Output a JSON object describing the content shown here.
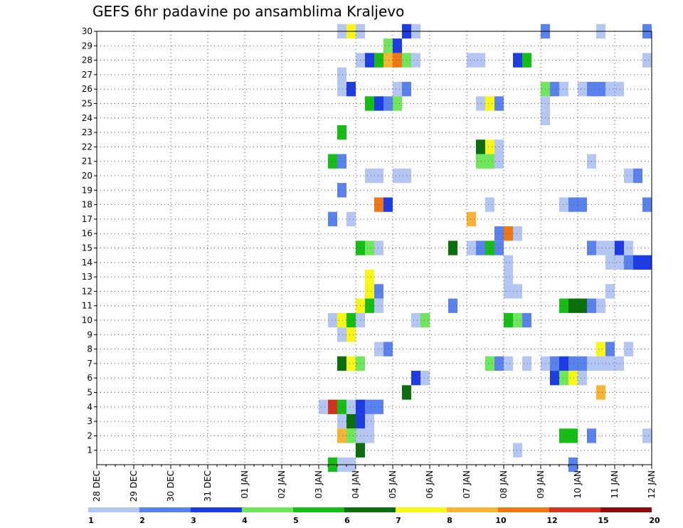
{
  "title": "GEFS 6hr padavine po ansamblima Kraljevo",
  "chart_data": {
    "type": "heatmap",
    "title": "GEFS 6hr padavine po ansamblima Kraljevo",
    "x_labels": [
      "28 DEC",
      "29 DEC",
      "30 DEC",
      "31 DEC",
      "01 JAN",
      "02 JAN",
      "03 JAN",
      "04 JAN",
      "05 JAN",
      "06 JAN",
      "07 JAN",
      "08 JAN",
      "09 JAN",
      "10 JAN",
      "11 JAN",
      "12 JAN"
    ],
    "x_unit": "6h step index (0 = 28 DEC 00Z, 4 steps per day)",
    "xlim": [
      0,
      60
    ],
    "y_ticks": [
      1,
      2,
      3,
      4,
      5,
      6,
      7,
      8,
      9,
      10,
      11,
      12,
      13,
      14,
      15,
      16,
      17,
      18,
      19,
      20,
      21,
      22,
      23,
      24,
      25,
      26,
      27,
      28,
      29,
      30
    ],
    "ylim": [
      0,
      30
    ],
    "grid": true,
    "colorbar": {
      "labels": [
        "1",
        "2",
        "3",
        "4",
        "5",
        "6",
        "7",
        "8",
        "10",
        "12",
        "15",
        "20"
      ],
      "colors": [
        "#b4c6f4",
        "#5a82ee",
        "#1e3ce6",
        "#6ee85a",
        "#14be14",
        "#0a6e0a",
        "#f8f814",
        "#f8b432",
        "#f07814",
        "#d2321e",
        "#8c0a0a"
      ]
    },
    "cells": [
      {
        "y": 30,
        "x": 26.5,
        "c": 1
      },
      {
        "y": 30,
        "x": 27.5,
        "c": 7
      },
      {
        "y": 30,
        "x": 28.5,
        "c": 1
      },
      {
        "y": 30,
        "x": 33.5,
        "c": 3
      },
      {
        "y": 30,
        "x": 34.5,
        "c": 1
      },
      {
        "y": 30,
        "x": 48.5,
        "c": 2
      },
      {
        "y": 30,
        "x": 54.5,
        "c": 1
      },
      {
        "y": 30,
        "x": 59.5,
        "c": 2
      },
      {
        "y": 29,
        "x": 31.5,
        "c": 4
      },
      {
        "y": 29,
        "x": 32.5,
        "c": 3
      },
      {
        "y": 28,
        "x": 28.5,
        "c": 1
      },
      {
        "y": 28,
        "x": 29.5,
        "c": 3
      },
      {
        "y": 28,
        "x": 30.5,
        "c": 5
      },
      {
        "y": 28,
        "x": 31.5,
        "c": 8
      },
      {
        "y": 28,
        "x": 32.5,
        "c": 9
      },
      {
        "y": 28,
        "x": 33.5,
        "c": 4
      },
      {
        "y": 28,
        "x": 34.5,
        "c": 1
      },
      {
        "y": 28,
        "x": 40.5,
        "c": 1
      },
      {
        "y": 28,
        "x": 41.5,
        "c": 1
      },
      {
        "y": 28,
        "x": 45.5,
        "c": 3
      },
      {
        "y": 28,
        "x": 46.5,
        "c": 5
      },
      {
        "y": 28,
        "x": 59.5,
        "c": 1
      },
      {
        "y": 27,
        "x": 26.5,
        "c": 1
      },
      {
        "y": 26,
        "x": 26.5,
        "c": 1
      },
      {
        "y": 26,
        "x": 27.5,
        "c": 3
      },
      {
        "y": 26,
        "x": 32.5,
        "c": 1
      },
      {
        "y": 26,
        "x": 33.5,
        "c": 2
      },
      {
        "y": 26,
        "x": 48.5,
        "c": 4
      },
      {
        "y": 26,
        "x": 49.5,
        "c": 2
      },
      {
        "y": 26,
        "x": 50.5,
        "c": 1
      },
      {
        "y": 26,
        "x": 52.5,
        "c": 1
      },
      {
        "y": 26,
        "x": 53.5,
        "c": 2
      },
      {
        "y": 26,
        "x": 54.5,
        "c": 2
      },
      {
        "y": 26,
        "x": 55.5,
        "c": 1
      },
      {
        "y": 26,
        "x": 56.5,
        "c": 1
      },
      {
        "y": 25,
        "x": 29.5,
        "c": 5
      },
      {
        "y": 25,
        "x": 30.5,
        "c": 3
      },
      {
        "y": 25,
        "x": 31.5,
        "c": 2
      },
      {
        "y": 25,
        "x": 32.5,
        "c": 4
      },
      {
        "y": 25,
        "x": 41.5,
        "c": 1
      },
      {
        "y": 25,
        "x": 42.5,
        "c": 7
      },
      {
        "y": 25,
        "x": 43.5,
        "c": 2
      },
      {
        "y": 25,
        "x": 48.5,
        "c": 1
      },
      {
        "y": 24,
        "x": 48.5,
        "c": 1
      },
      {
        "y": 23,
        "x": 26.5,
        "c": 5
      },
      {
        "y": 22,
        "x": 41.5,
        "c": 6
      },
      {
        "y": 22,
        "x": 42.5,
        "c": 7
      },
      {
        "y": 22,
        "x": 43.5,
        "c": 1
      },
      {
        "y": 21,
        "x": 25.5,
        "c": 5
      },
      {
        "y": 21,
        "x": 26.5,
        "c": 2
      },
      {
        "y": 21,
        "x": 41.5,
        "c": 4
      },
      {
        "y": 21,
        "x": 42.5,
        "c": 4
      },
      {
        "y": 21,
        "x": 43.5,
        "c": 1
      },
      {
        "y": 21,
        "x": 53.5,
        "c": 1
      },
      {
        "y": 20,
        "x": 29.5,
        "c": 1
      },
      {
        "y": 20,
        "x": 30.5,
        "c": 1
      },
      {
        "y": 20,
        "x": 32.5,
        "c": 1
      },
      {
        "y": 20,
        "x": 33.5,
        "c": 1
      },
      {
        "y": 20,
        "x": 57.5,
        "c": 1
      },
      {
        "y": 20,
        "x": 58.5,
        "c": 2
      },
      {
        "y": 19,
        "x": 26.5,
        "c": 2
      },
      {
        "y": 18,
        "x": 30.5,
        "c": 9
      },
      {
        "y": 18,
        "x": 31.5,
        "c": 3
      },
      {
        "y": 18,
        "x": 42.5,
        "c": 1
      },
      {
        "y": 18,
        "x": 50.5,
        "c": 1
      },
      {
        "y": 18,
        "x": 51.5,
        "c": 2
      },
      {
        "y": 18,
        "x": 52.5,
        "c": 2
      },
      {
        "y": 18,
        "x": 59.5,
        "c": 2
      },
      {
        "y": 17,
        "x": 25.5,
        "c": 2
      },
      {
        "y": 17,
        "x": 27.5,
        "c": 1
      },
      {
        "y": 17,
        "x": 40.5,
        "c": 8
      },
      {
        "y": 16,
        "x": 43.5,
        "c": 2
      },
      {
        "y": 16,
        "x": 44.5,
        "c": 9
      },
      {
        "y": 16,
        "x": 45.5,
        "c": 1
      },
      {
        "y": 15,
        "x": 28.5,
        "c": 5
      },
      {
        "y": 15,
        "x": 29.5,
        "c": 4
      },
      {
        "y": 15,
        "x": 30.5,
        "c": 1
      },
      {
        "y": 15,
        "x": 38.5,
        "c": 6
      },
      {
        "y": 15,
        "x": 40.5,
        "c": 1
      },
      {
        "y": 15,
        "x": 41.5,
        "c": 2
      },
      {
        "y": 15,
        "x": 42.5,
        "c": 5
      },
      {
        "y": 15,
        "x": 43.5,
        "c": 2
      },
      {
        "y": 15,
        "x": 53.5,
        "c": 2
      },
      {
        "y": 15,
        "x": 54.5,
        "c": 1
      },
      {
        "y": 15,
        "x": 55.5,
        "c": 1
      },
      {
        "y": 15,
        "x": 56.5,
        "c": 3
      },
      {
        "y": 15,
        "x": 57.5,
        "c": 1
      },
      {
        "y": 14,
        "x": 44.5,
        "c": 1
      },
      {
        "y": 14,
        "x": 55.5,
        "c": 1
      },
      {
        "y": 14,
        "x": 56.5,
        "c": 1
      },
      {
        "y": 14,
        "x": 57.5,
        "c": 2
      },
      {
        "y": 14,
        "x": 58.5,
        "c": 3
      },
      {
        "y": 14,
        "x": 59.5,
        "c": 3
      },
      {
        "y": 13,
        "x": 29.5,
        "c": 7
      },
      {
        "y": 13,
        "x": 44.5,
        "c": 1
      },
      {
        "y": 12,
        "x": 29.5,
        "c": 7
      },
      {
        "y": 12,
        "x": 30.5,
        "c": 2
      },
      {
        "y": 12,
        "x": 44.5,
        "c": 1
      },
      {
        "y": 12,
        "x": 45.5,
        "c": 1
      },
      {
        "y": 12,
        "x": 55.5,
        "c": 1
      },
      {
        "y": 11,
        "x": 28.5,
        "c": 7
      },
      {
        "y": 11,
        "x": 29.5,
        "c": 5
      },
      {
        "y": 11,
        "x": 30.5,
        "c": 1
      },
      {
        "y": 11,
        "x": 38.5,
        "c": 2
      },
      {
        "y": 11,
        "x": 50.5,
        "c": 5
      },
      {
        "y": 11,
        "x": 51.5,
        "c": 6
      },
      {
        "y": 11,
        "x": 52.5,
        "c": 6
      },
      {
        "y": 11,
        "x": 53.5,
        "c": 2
      },
      {
        "y": 11,
        "x": 54.5,
        "c": 1
      },
      {
        "y": 10,
        "x": 25.5,
        "c": 1
      },
      {
        "y": 10,
        "x": 26.5,
        "c": 7
      },
      {
        "y": 10,
        "x": 27.5,
        "c": 5
      },
      {
        "y": 10,
        "x": 28.5,
        "c": 1
      },
      {
        "y": 10,
        "x": 34.5,
        "c": 1
      },
      {
        "y": 10,
        "x": 35.5,
        "c": 4
      },
      {
        "y": 10,
        "x": 44.5,
        "c": 5
      },
      {
        "y": 10,
        "x": 45.5,
        "c": 4
      },
      {
        "y": 10,
        "x": 46.5,
        "c": 2
      },
      {
        "y": 9,
        "x": 26.5,
        "c": 1
      },
      {
        "y": 9,
        "x": 27.5,
        "c": 7
      },
      {
        "y": 8,
        "x": 30.5,
        "c": 1
      },
      {
        "y": 8,
        "x": 31.5,
        "c": 2
      },
      {
        "y": 8,
        "x": 54.5,
        "c": 7
      },
      {
        "y": 8,
        "x": 55.5,
        "c": 2
      },
      {
        "y": 8,
        "x": 57.5,
        "c": 1
      },
      {
        "y": 7,
        "x": 26.5,
        "c": 6
      },
      {
        "y": 7,
        "x": 27.5,
        "c": 7
      },
      {
        "y": 7,
        "x": 28.5,
        "c": 4
      },
      {
        "y": 7,
        "x": 42.5,
        "c": 4
      },
      {
        "y": 7,
        "x": 43.5,
        "c": 2
      },
      {
        "y": 7,
        "x": 44.5,
        "c": 1
      },
      {
        "y": 7,
        "x": 46.5,
        "c": 1
      },
      {
        "y": 7,
        "x": 48.5,
        "c": 1
      },
      {
        "y": 7,
        "x": 49.5,
        "c": 2
      },
      {
        "y": 7,
        "x": 50.5,
        "c": 3
      },
      {
        "y": 7,
        "x": 51.5,
        "c": 2
      },
      {
        "y": 7,
        "x": 52.5,
        "c": 2
      },
      {
        "y": 7,
        "x": 53.5,
        "c": 1
      },
      {
        "y": 7,
        "x": 54.5,
        "c": 1
      },
      {
        "y": 7,
        "x": 55.5,
        "c": 1
      },
      {
        "y": 7,
        "x": 56.5,
        "c": 1
      },
      {
        "y": 6,
        "x": 34.5,
        "c": 3
      },
      {
        "y": 6,
        "x": 35.5,
        "c": 1
      },
      {
        "y": 6,
        "x": 49.5,
        "c": 3
      },
      {
        "y": 6,
        "x": 50.5,
        "c": 4
      },
      {
        "y": 6,
        "x": 51.5,
        "c": 7
      },
      {
        "y": 6,
        "x": 52.5,
        "c": 1
      },
      {
        "y": 5,
        "x": 33.5,
        "c": 6
      },
      {
        "y": 5,
        "x": 54.5,
        "c": 8
      },
      {
        "y": 4,
        "x": 24.5,
        "c": 1
      },
      {
        "y": 4,
        "x": 25.5,
        "c": 10
      },
      {
        "y": 4,
        "x": 26.5,
        "c": 5
      },
      {
        "y": 4,
        "x": 27.5,
        "c": 1
      },
      {
        "y": 4,
        "x": 28.5,
        "c": 3
      },
      {
        "y": 4,
        "x": 29.5,
        "c": 2
      },
      {
        "y": 4,
        "x": 30.5,
        "c": 2
      },
      {
        "y": 3,
        "x": 26.5,
        "c": 1
      },
      {
        "y": 3,
        "x": 27.5,
        "c": 6
      },
      {
        "y": 3,
        "x": 28.5,
        "c": 3
      },
      {
        "y": 3,
        "x": 29.5,
        "c": 1
      },
      {
        "y": 2,
        "x": 26.5,
        "c": 8
      },
      {
        "y": 2,
        "x": 27.5,
        "c": 4
      },
      {
        "y": 2,
        "x": 28.5,
        "c": 1
      },
      {
        "y": 2,
        "x": 29.5,
        "c": 1
      },
      {
        "y": 2,
        "x": 50.5,
        "c": 5
      },
      {
        "y": 2,
        "x": 51.5,
        "c": 5
      },
      {
        "y": 2,
        "x": 53.5,
        "c": 2
      },
      {
        "y": 2,
        "x": 59.5,
        "c": 1
      },
      {
        "y": 1,
        "x": 28.5,
        "c": 6
      },
      {
        "y": 1,
        "x": 45.5,
        "c": 1
      },
      {
        "y": 0,
        "x": 25.5,
        "c": 5
      },
      {
        "y": 0,
        "x": 26.5,
        "c": 1
      },
      {
        "y": 0,
        "x": 27.5,
        "c": 1
      },
      {
        "y": 0,
        "x": 51.5,
        "c": 2
      }
    ]
  }
}
